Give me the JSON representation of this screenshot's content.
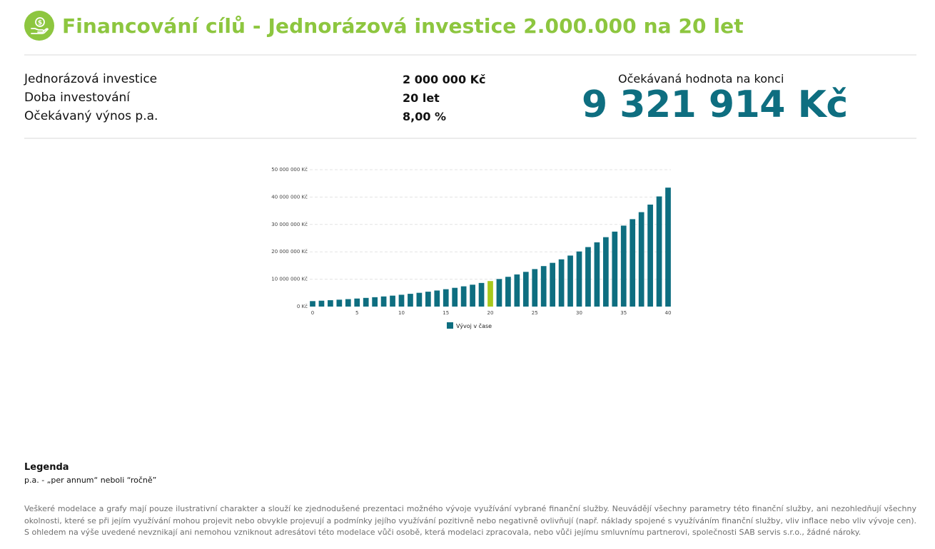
{
  "header": {
    "title": "Financování cílů - Jednorázová investice 2.000.000 na 20 let",
    "icon": "money-hand-icon",
    "accent_color": "#8dc63f"
  },
  "params": [
    {
      "label": "Jednorázová investice",
      "value": "2 000 000 Kč"
    },
    {
      "label": "Doba investování",
      "value": "20 let"
    },
    {
      "label": "Očekávaný výnos p.a.",
      "value": "8,00 %"
    }
  ],
  "result": {
    "label": "Očekávaná hodnota na konci",
    "value": "9 321 914 Kč",
    "color": "#0e6e80"
  },
  "chart_data": {
    "type": "bar",
    "title": "",
    "xlabel": "",
    "ylabel": "",
    "x": [
      0,
      1,
      2,
      3,
      4,
      5,
      6,
      7,
      8,
      9,
      10,
      11,
      12,
      13,
      14,
      15,
      16,
      17,
      18,
      19,
      20,
      21,
      22,
      23,
      24,
      25,
      26,
      27,
      28,
      29,
      30,
      31,
      32,
      33,
      34,
      35,
      36,
      37,
      38,
      39,
      40
    ],
    "series": [
      {
        "name": "Vývoj v čase",
        "color": "#0e6e80",
        "values": [
          2000000,
          2160000,
          2332800,
          2519424,
          2720978,
          2938656,
          3173749,
          3427649,
          3701861,
          3998010,
          4317850,
          4663278,
          5036340,
          5439247,
          5874387,
          6344338,
          6851885,
          7400036,
          7992039,
          8631402,
          9321914,
          10067667,
          10873080,
          11742927,
          12682361,
          13696950,
          14792706,
          15976122,
          17254212,
          18634549,
          20125314,
          21735339,
          23474166,
          25352099,
          27380265,
          29570686,
          31936341,
          34491248,
          37250548,
          40230592,
          43449039
        ]
      }
    ],
    "highlight": {
      "index": 20,
      "color": "#a8c81c"
    },
    "y_ticks": [
      "0 Kč",
      "10 000 000 Kč",
      "20 000 000 Kč",
      "30 000 000 Kč",
      "40 000 000 Kč",
      "50 000 000 Kč"
    ],
    "x_ticks": [
      "0",
      "5",
      "10",
      "15",
      "20",
      "25",
      "30",
      "35",
      "40"
    ],
    "ylim": [
      0,
      50000000
    ],
    "grid": true,
    "legend_position": "bottom"
  },
  "legend": {
    "title": "Legenda",
    "text": "p.a. - „per annum“ neboli “ročně”"
  },
  "disclaimer": "Veškeré modelace a grafy mají pouze ilustrativní charakter a slouží ke zjednodušené prezentaci možného vývoje využívání vybrané finanční služby. Neuvádějí všechny parametry této finanční služby, ani nezohledňují všechny okolnosti, které se při jejím využívání mohou projevit nebo obvykle projevují a podmínky jejího využívání pozitivně nebo negativně ovlivňují (např. náklady spojené s využíváním finanční služby, vliv inflace nebo vliv vývoje cen). S ohledem na výše uvedené nevznikají ani nemohou vzniknout adresátovi této modelace vůči osobě, která modelaci zpracovala, nebo vůči jejímu smluvnímu partnerovi, společnosti SAB servis s.r.o., žádné nároky."
}
